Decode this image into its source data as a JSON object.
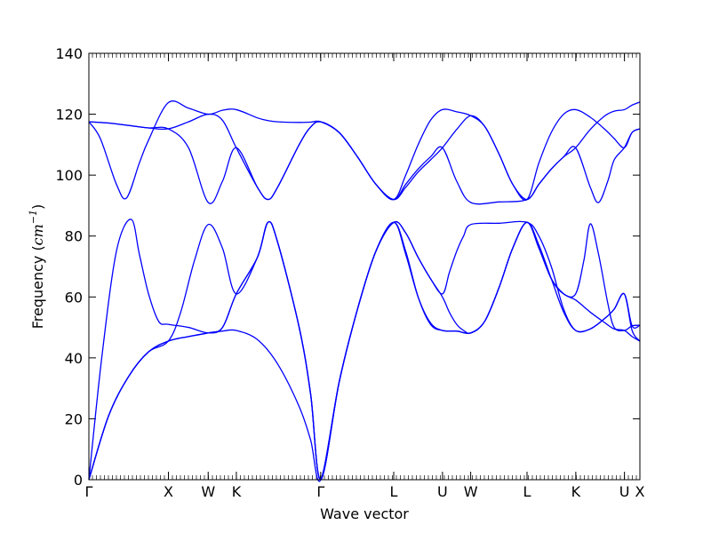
{
  "chart_data": {
    "type": "line",
    "xlabel": "Wave vector",
    "ylabel": {
      "prefix": "Frequency (",
      "math": "cm",
      "superscript": "−1",
      "suffix": ")"
    },
    "ylim": [
      0,
      140
    ],
    "y_ticks": [
      0,
      20,
      40,
      60,
      80,
      100,
      120,
      140
    ],
    "xlim": [
      0,
      12
    ],
    "x_ticks": [
      {
        "label": "Γ",
        "x": 0
      },
      {
        "label": "X",
        "x": 1.732
      },
      {
        "label": "W",
        "x": 2.598
      },
      {
        "label": "K",
        "x": 3.212
      },
      {
        "label": "Γ",
        "x": 5.049
      },
      {
        "label": "L",
        "x": 6.639
      },
      {
        "label": "U",
        "x": 7.701
      },
      {
        "label": "W",
        "x": 8.315
      },
      {
        "label": "L",
        "x": 9.542
      },
      {
        "label": "K",
        "x": 10.604
      },
      {
        "label": "U",
        "x": 11.664
      },
      {
        "label": "X",
        "x": 12
      }
    ],
    "line_color": "#0000ff",
    "grid": false,
    "series": [
      {
        "points": [
          [
            0,
            0
          ],
          [
            0.43,
            21
          ],
          [
            0.87,
            34
          ],
          [
            1.3,
            42
          ],
          [
            1.73,
            45.5
          ],
          [
            2.17,
            47
          ],
          [
            2.6,
            48.2
          ],
          [
            2.91,
            50
          ],
          [
            3.21,
            61
          ],
          [
            3.67,
            73
          ],
          [
            3.9,
            84.5
          ],
          [
            4.11,
            78
          ],
          [
            4.58,
            50
          ],
          [
            4.83,
            28
          ],
          [
            5.05,
            0
          ],
          [
            5.45,
            32
          ],
          [
            5.85,
            56
          ],
          [
            6.25,
            75
          ],
          [
            6.64,
            84.5
          ],
          [
            6.9,
            81
          ],
          [
            7.17,
            73
          ],
          [
            7.44,
            66
          ],
          [
            7.7,
            60
          ],
          [
            7.85,
            55
          ],
          [
            8.01,
            51
          ],
          [
            8.16,
            49
          ],
          [
            8.32,
            48.2
          ],
          [
            8.62,
            52
          ],
          [
            8.93,
            63
          ],
          [
            9.23,
            76
          ],
          [
            9.54,
            84.5
          ],
          [
            9.8,
            76
          ],
          [
            10.07,
            66
          ],
          [
            10.34,
            61
          ],
          [
            10.6,
            59
          ],
          [
            10.92,
            55
          ],
          [
            11.24,
            51.5
          ],
          [
            11.44,
            49.5
          ],
          [
            11.66,
            49
          ],
          [
            11.83,
            47
          ],
          [
            12,
            45.5
          ]
        ]
      },
      {
        "points": [
          [
            0,
            0
          ],
          [
            0.43,
            21
          ],
          [
            0.87,
            34
          ],
          [
            1.3,
            42
          ],
          [
            1.73,
            45.5
          ],
          [
            2.17,
            47
          ],
          [
            2.6,
            48.2
          ],
          [
            2.91,
            48.8
          ],
          [
            3.21,
            49
          ],
          [
            3.67,
            46
          ],
          [
            4.11,
            38
          ],
          [
            4.58,
            24
          ],
          [
            4.83,
            13
          ],
          [
            5.05,
            0
          ],
          [
            5.45,
            32
          ],
          [
            5.85,
            56
          ],
          [
            6.25,
            75
          ],
          [
            6.64,
            84.5
          ],
          [
            6.9,
            74
          ],
          [
            7.17,
            60
          ],
          [
            7.44,
            51.5
          ],
          [
            7.7,
            49
          ],
          [
            8.01,
            48.8
          ],
          [
            8.32,
            48.2
          ],
          [
            8.62,
            52
          ],
          [
            8.93,
            63
          ],
          [
            9.23,
            76
          ],
          [
            9.54,
            84.5
          ],
          [
            9.8,
            77
          ],
          [
            10.07,
            66
          ],
          [
            10.34,
            55
          ],
          [
            10.6,
            49
          ],
          [
            10.92,
            49.5
          ],
          [
            11.24,
            53
          ],
          [
            11.44,
            56
          ],
          [
            11.66,
            61
          ],
          [
            11.83,
            49
          ],
          [
            12,
            45.5
          ]
        ]
      },
      {
        "points": [
          [
            0,
            0
          ],
          [
            0.28,
            40
          ],
          [
            0.6,
            75
          ],
          [
            0.92,
            85.5
          ],
          [
            1.1,
            74
          ],
          [
            1.3,
            61
          ],
          [
            1.52,
            52
          ],
          [
            1.73,
            51
          ],
          [
            2.17,
            50
          ],
          [
            2.6,
            48.2
          ],
          [
            2.91,
            50
          ],
          [
            3.21,
            61
          ],
          [
            3.67,
            73
          ],
          [
            3.9,
            84.5
          ],
          [
            4.11,
            78
          ],
          [
            4.58,
            50
          ],
          [
            4.83,
            28
          ],
          [
            5.05,
            0
          ],
          [
            5.45,
            32
          ],
          [
            5.85,
            56
          ],
          [
            6.25,
            75
          ],
          [
            6.64,
            84.5
          ],
          [
            6.9,
            81
          ],
          [
            7.17,
            73
          ],
          [
            7.44,
            66
          ],
          [
            7.7,
            61
          ],
          [
            7.85,
            68
          ],
          [
            8.01,
            75
          ],
          [
            8.16,
            80
          ],
          [
            8.32,
            83.8
          ],
          [
            8.93,
            84.2
          ],
          [
            9.54,
            84.5
          ],
          [
            9.8,
            80
          ],
          [
            10.07,
            70
          ],
          [
            10.34,
            56
          ],
          [
            10.6,
            49
          ],
          [
            10.92,
            49.5
          ],
          [
            11.24,
            53
          ],
          [
            11.44,
            56
          ],
          [
            11.66,
            61
          ],
          [
            11.83,
            50.5
          ],
          [
            12,
            50.7
          ]
        ]
      },
      {
        "points": [
          [
            0,
            0
          ],
          [
            0.43,
            21
          ],
          [
            0.87,
            34
          ],
          [
            1.3,
            42
          ],
          [
            1.73,
            45.5
          ],
          [
            2.0,
            55
          ],
          [
            2.3,
            72
          ],
          [
            2.6,
            83.8
          ],
          [
            2.91,
            76
          ],
          [
            3.21,
            61
          ],
          [
            3.67,
            73
          ],
          [
            3.9,
            84.5
          ],
          [
            4.11,
            78
          ],
          [
            4.58,
            50
          ],
          [
            4.83,
            28
          ],
          [
            5.05,
            0
          ],
          [
            5.45,
            32
          ],
          [
            5.85,
            56
          ],
          [
            6.25,
            75
          ],
          [
            6.64,
            84.5
          ],
          [
            6.9,
            75
          ],
          [
            7.17,
            60
          ],
          [
            7.44,
            51
          ],
          [
            7.7,
            49
          ],
          [
            8.01,
            48.8
          ],
          [
            8.32,
            48.2
          ],
          [
            8.62,
            52
          ],
          [
            8.93,
            63
          ],
          [
            9.23,
            76
          ],
          [
            9.54,
            84.5
          ],
          [
            9.8,
            77
          ],
          [
            10.07,
            66
          ],
          [
            10.34,
            61
          ],
          [
            10.6,
            61
          ],
          [
            10.78,
            72
          ],
          [
            10.92,
            84
          ],
          [
            11.1,
            74
          ],
          [
            11.3,
            58
          ],
          [
            11.44,
            50
          ],
          [
            11.66,
            49
          ],
          [
            11.83,
            50.5
          ],
          [
            12,
            50.7
          ]
        ]
      },
      {
        "points": [
          [
            0,
            117.5
          ],
          [
            0.43,
            117.1
          ],
          [
            0.87,
            116.3
          ],
          [
            1.3,
            115.5
          ],
          [
            1.73,
            115.2
          ],
          [
            2.17,
            117.5
          ],
          [
            2.6,
            120
          ],
          [
            2.91,
            118
          ],
          [
            3.21,
            109
          ],
          [
            3.67,
            96
          ],
          [
            3.9,
            92
          ],
          [
            4.11,
            96
          ],
          [
            4.58,
            110
          ],
          [
            4.83,
            115.8
          ],
          [
            5.05,
            117.5
          ],
          [
            5.45,
            114
          ],
          [
            5.85,
            106
          ],
          [
            6.25,
            97
          ],
          [
            6.64,
            92
          ],
          [
            6.9,
            96
          ],
          [
            7.17,
            101
          ],
          [
            7.44,
            105
          ],
          [
            7.7,
            109
          ],
          [
            8.01,
            115
          ],
          [
            8.32,
            119.5
          ],
          [
            8.62,
            116
          ],
          [
            8.93,
            107
          ],
          [
            9.23,
            97
          ],
          [
            9.54,
            92
          ],
          [
            9.8,
            97
          ],
          [
            10.07,
            102
          ],
          [
            10.34,
            106
          ],
          [
            10.6,
            109
          ],
          [
            10.92,
            115
          ],
          [
            11.24,
            119.5
          ],
          [
            11.44,
            121
          ],
          [
            11.66,
            121.5
          ],
          [
            11.83,
            123
          ],
          [
            12,
            124
          ]
        ]
      },
      {
        "points": [
          [
            0,
            117.5
          ],
          [
            0.43,
            117.1
          ],
          [
            0.87,
            116.3
          ],
          [
            1.3,
            115.5
          ],
          [
            1.73,
            115.2
          ],
          [
            2.17,
            109
          ],
          [
            2.6,
            91
          ],
          [
            2.91,
            98
          ],
          [
            3.21,
            109
          ],
          [
            3.67,
            96
          ],
          [
            3.9,
            92
          ],
          [
            4.11,
            96
          ],
          [
            4.58,
            110
          ],
          [
            4.83,
            115.8
          ],
          [
            5.05,
            117.5
          ],
          [
            5.45,
            114
          ],
          [
            5.85,
            106
          ],
          [
            6.25,
            97
          ],
          [
            6.64,
            92
          ],
          [
            6.9,
            97
          ],
          [
            7.17,
            102
          ],
          [
            7.44,
            106
          ],
          [
            7.7,
            109
          ],
          [
            8.01,
            98
          ],
          [
            8.32,
            91
          ],
          [
            8.93,
            91.2
          ],
          [
            9.54,
            92
          ],
          [
            9.8,
            97
          ],
          [
            10.07,
            102
          ],
          [
            10.34,
            106
          ],
          [
            10.6,
            109
          ],
          [
            10.92,
            96
          ],
          [
            11.1,
            91
          ],
          [
            11.3,
            98
          ],
          [
            11.44,
            105
          ],
          [
            11.66,
            109
          ],
          [
            11.83,
            114
          ],
          [
            12,
            115.2
          ]
        ]
      },
      {
        "points": [
          [
            0,
            117.5
          ],
          [
            0.25,
            112
          ],
          [
            0.6,
            97
          ],
          [
            0.82,
            92.5
          ],
          [
            1.1,
            104
          ],
          [
            1.3,
            111.5
          ],
          [
            1.73,
            123.8
          ],
          [
            2.17,
            122
          ],
          [
            2.6,
            120
          ],
          [
            2.91,
            121.3
          ],
          [
            3.21,
            121.5
          ],
          [
            3.67,
            118.8
          ],
          [
            3.9,
            117.9
          ],
          [
            4.11,
            117.5
          ],
          [
            4.58,
            117.3
          ],
          [
            4.83,
            117.4
          ],
          [
            5.05,
            117.5
          ],
          [
            5.45,
            114
          ],
          [
            5.85,
            106
          ],
          [
            6.25,
            97
          ],
          [
            6.64,
            92
          ],
          [
            6.9,
            100
          ],
          [
            7.17,
            110
          ],
          [
            7.44,
            118
          ],
          [
            7.7,
            121.5
          ],
          [
            8.01,
            120.8
          ],
          [
            8.32,
            119.5
          ],
          [
            8.62,
            116
          ],
          [
            8.93,
            107
          ],
          [
            9.23,
            97
          ],
          [
            9.54,
            92
          ],
          [
            9.8,
            104
          ],
          [
            10.07,
            114
          ],
          [
            10.34,
            120
          ],
          [
            10.6,
            121.5
          ],
          [
            10.92,
            119
          ],
          [
            11.24,
            115
          ],
          [
            11.44,
            112
          ],
          [
            11.66,
            109
          ],
          [
            11.83,
            114
          ],
          [
            12,
            115.2
          ]
        ]
      }
    ]
  }
}
